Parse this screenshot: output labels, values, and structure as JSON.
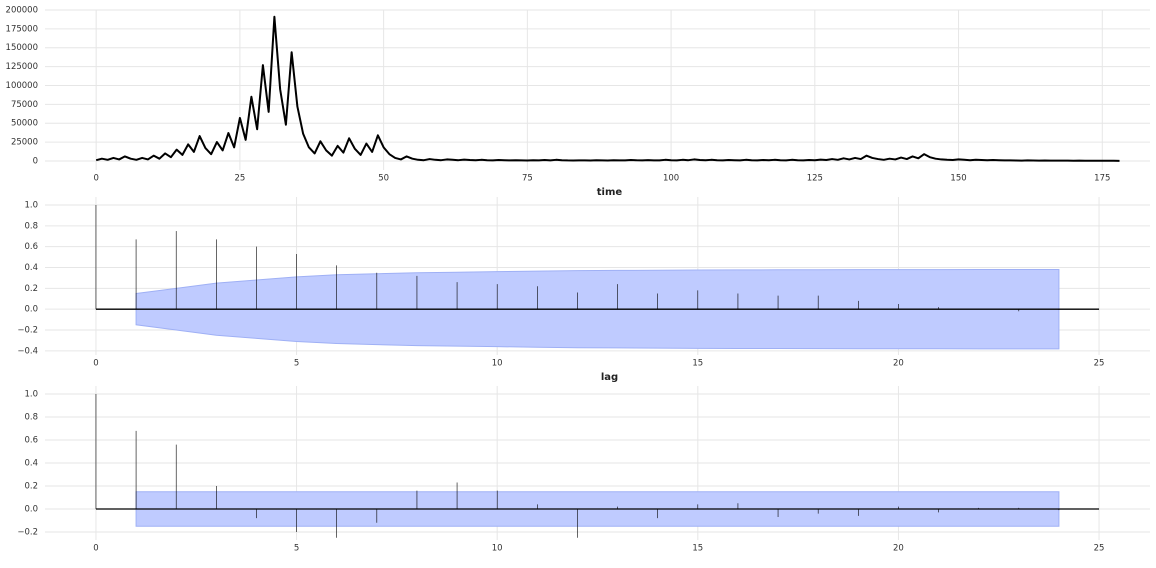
{
  "chart_data": [
    {
      "type": "line",
      "xlabel": null,
      "color": "#000000",
      "grid": true,
      "x": [
        0,
        1,
        2,
        3,
        4,
        5,
        6,
        7,
        8,
        9,
        10,
        11,
        12,
        13,
        14,
        15,
        16,
        17,
        18,
        19,
        20,
        21,
        22,
        23,
        24,
        25,
        26,
        27,
        28,
        29,
        30,
        31,
        32,
        33,
        34,
        35,
        36,
        37,
        38,
        39,
        40,
        41,
        42,
        43,
        44,
        45,
        46,
        47,
        48,
        49,
        50,
        51,
        52,
        53,
        54,
        55,
        56,
        57,
        58,
        59,
        60,
        61,
        62,
        63,
        64,
        65,
        66,
        67,
        68,
        69,
        70,
        71,
        72,
        73,
        74,
        75,
        76,
        77,
        78,
        79,
        80,
        81,
        82,
        83,
        84,
        85,
        86,
        87,
        88,
        89,
        90,
        91,
        92,
        93,
        94,
        95,
        96,
        97,
        98,
        99,
        100,
        101,
        102,
        103,
        104,
        105,
        106,
        107,
        108,
        109,
        110,
        111,
        112,
        113,
        114,
        115,
        116,
        117,
        118,
        119,
        120,
        121,
        122,
        123,
        124,
        125,
        126,
        127,
        128,
        129,
        130,
        131,
        132,
        133,
        134,
        135,
        136,
        137,
        138,
        139,
        140,
        141,
        142,
        143,
        144,
        145,
        146,
        147,
        148,
        149,
        150,
        151,
        152,
        153,
        154,
        155,
        156,
        157,
        158,
        159,
        160,
        161,
        162,
        163,
        164,
        165,
        166,
        167,
        168,
        169,
        170,
        171,
        172,
        173,
        174,
        175,
        176,
        177,
        178
      ],
      "values": [
        1000,
        3000,
        1500,
        4000,
        2000,
        6000,
        3000,
        1500,
        4000,
        2000,
        7000,
        3000,
        10000,
        5000,
        15000,
        8000,
        22000,
        12000,
        33000,
        17000,
        9000,
        25000,
        14000,
        37000,
        18000,
        57000,
        28000,
        85000,
        42000,
        127000,
        65000,
        191000,
        95000,
        48000,
        144000,
        72000,
        36000,
        18000,
        10000,
        26000,
        14000,
        7000,
        20000,
        11000,
        30000,
        16000,
        8000,
        23000,
        12000,
        34000,
        18000,
        9000,
        4000,
        2000,
        6000,
        3000,
        1500,
        1000,
        2500,
        1500,
        1000,
        2000,
        1500,
        1000,
        1800,
        1200,
        900,
        1500,
        1000,
        800,
        1200,
        900,
        700,
        1000,
        800,
        600,
        900,
        700,
        1200,
        800,
        1500,
        1000,
        700,
        600,
        800,
        700,
        600,
        900,
        700,
        600,
        1000,
        800,
        700,
        1200,
        900,
        800,
        1100,
        800,
        700,
        1500,
        1000,
        800,
        1500,
        1000,
        2000,
        1200,
        900,
        1500,
        1000,
        800,
        1200,
        900,
        700,
        1500,
        1000,
        800,
        1200,
        900,
        1500,
        1000,
        800,
        1500,
        1000,
        700,
        1200,
        900,
        1800,
        1200,
        2500,
        1500,
        3500,
        2000,
        4000,
        2500,
        7000,
        4000,
        2500,
        1500,
        3000,
        2000,
        4500,
        2500,
        6000,
        3500,
        9000,
        5000,
        3000,
        2000,
        1500,
        1200,
        2000,
        1500,
        1000,
        1500,
        1200,
        900,
        1300,
        1000,
        800,
        700,
        600,
        500,
        700,
        600,
        500,
        600,
        500,
        400,
        500,
        400,
        300,
        400,
        300,
        250,
        300,
        200,
        250,
        200,
        150
      ],
      "xlim": [
        -8.9,
        183.3
      ],
      "ylim": [
        -12000,
        200000
      ],
      "xticks": [
        0,
        25,
        50,
        75,
        100,
        125,
        150,
        175
      ],
      "yticks": [
        0,
        25000,
        50000,
        75000,
        100000,
        125000,
        150000,
        175000,
        200000
      ]
    },
    {
      "type": "stem",
      "xlabel": "time",
      "color": "#000000",
      "band_color": "#bfcbff",
      "grid": true,
      "x": [
        0,
        1,
        2,
        3,
        4,
        5,
        6,
        7,
        8,
        9,
        10,
        11,
        12,
        13,
        14,
        15,
        16,
        17,
        18,
        19,
        20,
        21,
        22,
        23,
        24
      ],
      "values": [
        1.0,
        0.67,
        0.75,
        0.67,
        0.6,
        0.53,
        0.42,
        0.35,
        0.32,
        0.26,
        0.24,
        0.22,
        0.16,
        0.24,
        0.15,
        0.18,
        0.15,
        0.13,
        0.13,
        0.08,
        0.05,
        0.02,
        0.005,
        -0.02,
        -0.005
      ],
      "band_x": [
        1,
        2,
        3,
        4,
        5,
        6,
        7,
        8,
        9,
        10,
        11,
        12,
        13,
        14,
        15,
        16,
        17,
        18,
        19,
        20,
        21,
        22,
        23,
        24
      ],
      "band_upper": [
        0.15,
        0.2,
        0.25,
        0.28,
        0.31,
        0.33,
        0.34,
        0.35,
        0.355,
        0.36,
        0.365,
        0.37,
        0.372,
        0.374,
        0.376,
        0.377,
        0.378,
        0.379,
        0.38,
        0.38,
        0.38,
        0.381,
        0.381,
        0.381
      ],
      "band_lower": [
        -0.15,
        -0.2,
        -0.25,
        -0.28,
        -0.31,
        -0.33,
        -0.34,
        -0.35,
        -0.355,
        -0.36,
        -0.365,
        -0.37,
        -0.372,
        -0.374,
        -0.376,
        -0.377,
        -0.378,
        -0.379,
        -0.38,
        -0.38,
        -0.38,
        -0.381,
        -0.381,
        -0.381
      ],
      "xlim": [
        -1.27,
        26.27
      ],
      "ylim": [
        -0.44,
        1.077
      ],
      "xticks": [
        0,
        5,
        10,
        15,
        20,
        25
      ],
      "yticks": [
        {
          "value": -0.4,
          "label": "−0.4"
        },
        {
          "value": -0.2,
          "label": "−0.2"
        },
        {
          "value": 0,
          "label": "0.0"
        },
        {
          "value": 0.2,
          "label": "0.2"
        },
        {
          "value": 0.4,
          "label": "0.4"
        },
        {
          "value": 0.6,
          "label": "0.6"
        },
        {
          "value": 0.8,
          "label": "0.8"
        },
        {
          "value": 1.0,
          "label": "1.0"
        }
      ]
    },
    {
      "type": "stem",
      "xlabel": "lag",
      "color": "#000000",
      "band_color": "#bfcbff",
      "grid": true,
      "x": [
        0,
        1,
        2,
        3,
        4,
        5,
        6,
        7,
        8,
        9,
        10,
        11,
        12,
        13,
        14,
        15,
        16,
        17,
        18,
        19,
        20,
        21,
        22,
        23,
        24
      ],
      "values": [
        1.0,
        0.68,
        0.56,
        0.2,
        -0.08,
        -0.2,
        -0.25,
        -0.12,
        0.16,
        0.23,
        0.16,
        0.04,
        -0.25,
        0.02,
        -0.08,
        0.04,
        0.05,
        -0.07,
        -0.04,
        -0.06,
        0.02,
        -0.03,
        0.01,
        0.01,
        -0.01
      ],
      "band_x": [
        1,
        2,
        3,
        4,
        5,
        6,
        7,
        8,
        9,
        10,
        11,
        12,
        13,
        14,
        15,
        16,
        17,
        18,
        19,
        20,
        21,
        22,
        23,
        24
      ],
      "band_upper": [
        0.15,
        0.15,
        0.15,
        0.15,
        0.15,
        0.15,
        0.15,
        0.15,
        0.15,
        0.15,
        0.15,
        0.15,
        0.15,
        0.15,
        0.15,
        0.15,
        0.15,
        0.15,
        0.15,
        0.15,
        0.15,
        0.15,
        0.15,
        0.15
      ],
      "band_lower": [
        -0.15,
        -0.15,
        -0.15,
        -0.15,
        -0.15,
        -0.15,
        -0.15,
        -0.15,
        -0.15,
        -0.15,
        -0.15,
        -0.15,
        -0.15,
        -0.15,
        -0.15,
        -0.15,
        -0.15,
        -0.15,
        -0.15,
        -0.15,
        -0.15,
        -0.15,
        -0.15,
        -0.15
      ],
      "xlim": [
        -1.27,
        26.27
      ],
      "ylim": [
        -0.27,
        1.07
      ],
      "xticks": [
        0,
        5,
        10,
        15,
        20,
        25
      ],
      "yticks": [
        {
          "value": -0.2,
          "label": "−0.2"
        },
        {
          "value": 0,
          "label": "0.0"
        },
        {
          "value": 0.2,
          "label": "0.2"
        },
        {
          "value": 0.4,
          "label": "0.4"
        },
        {
          "value": 0.6,
          "label": "0.6"
        },
        {
          "value": 0.8,
          "label": "0.8"
        },
        {
          "value": 1.0,
          "label": "1.0"
        }
      ]
    }
  ]
}
